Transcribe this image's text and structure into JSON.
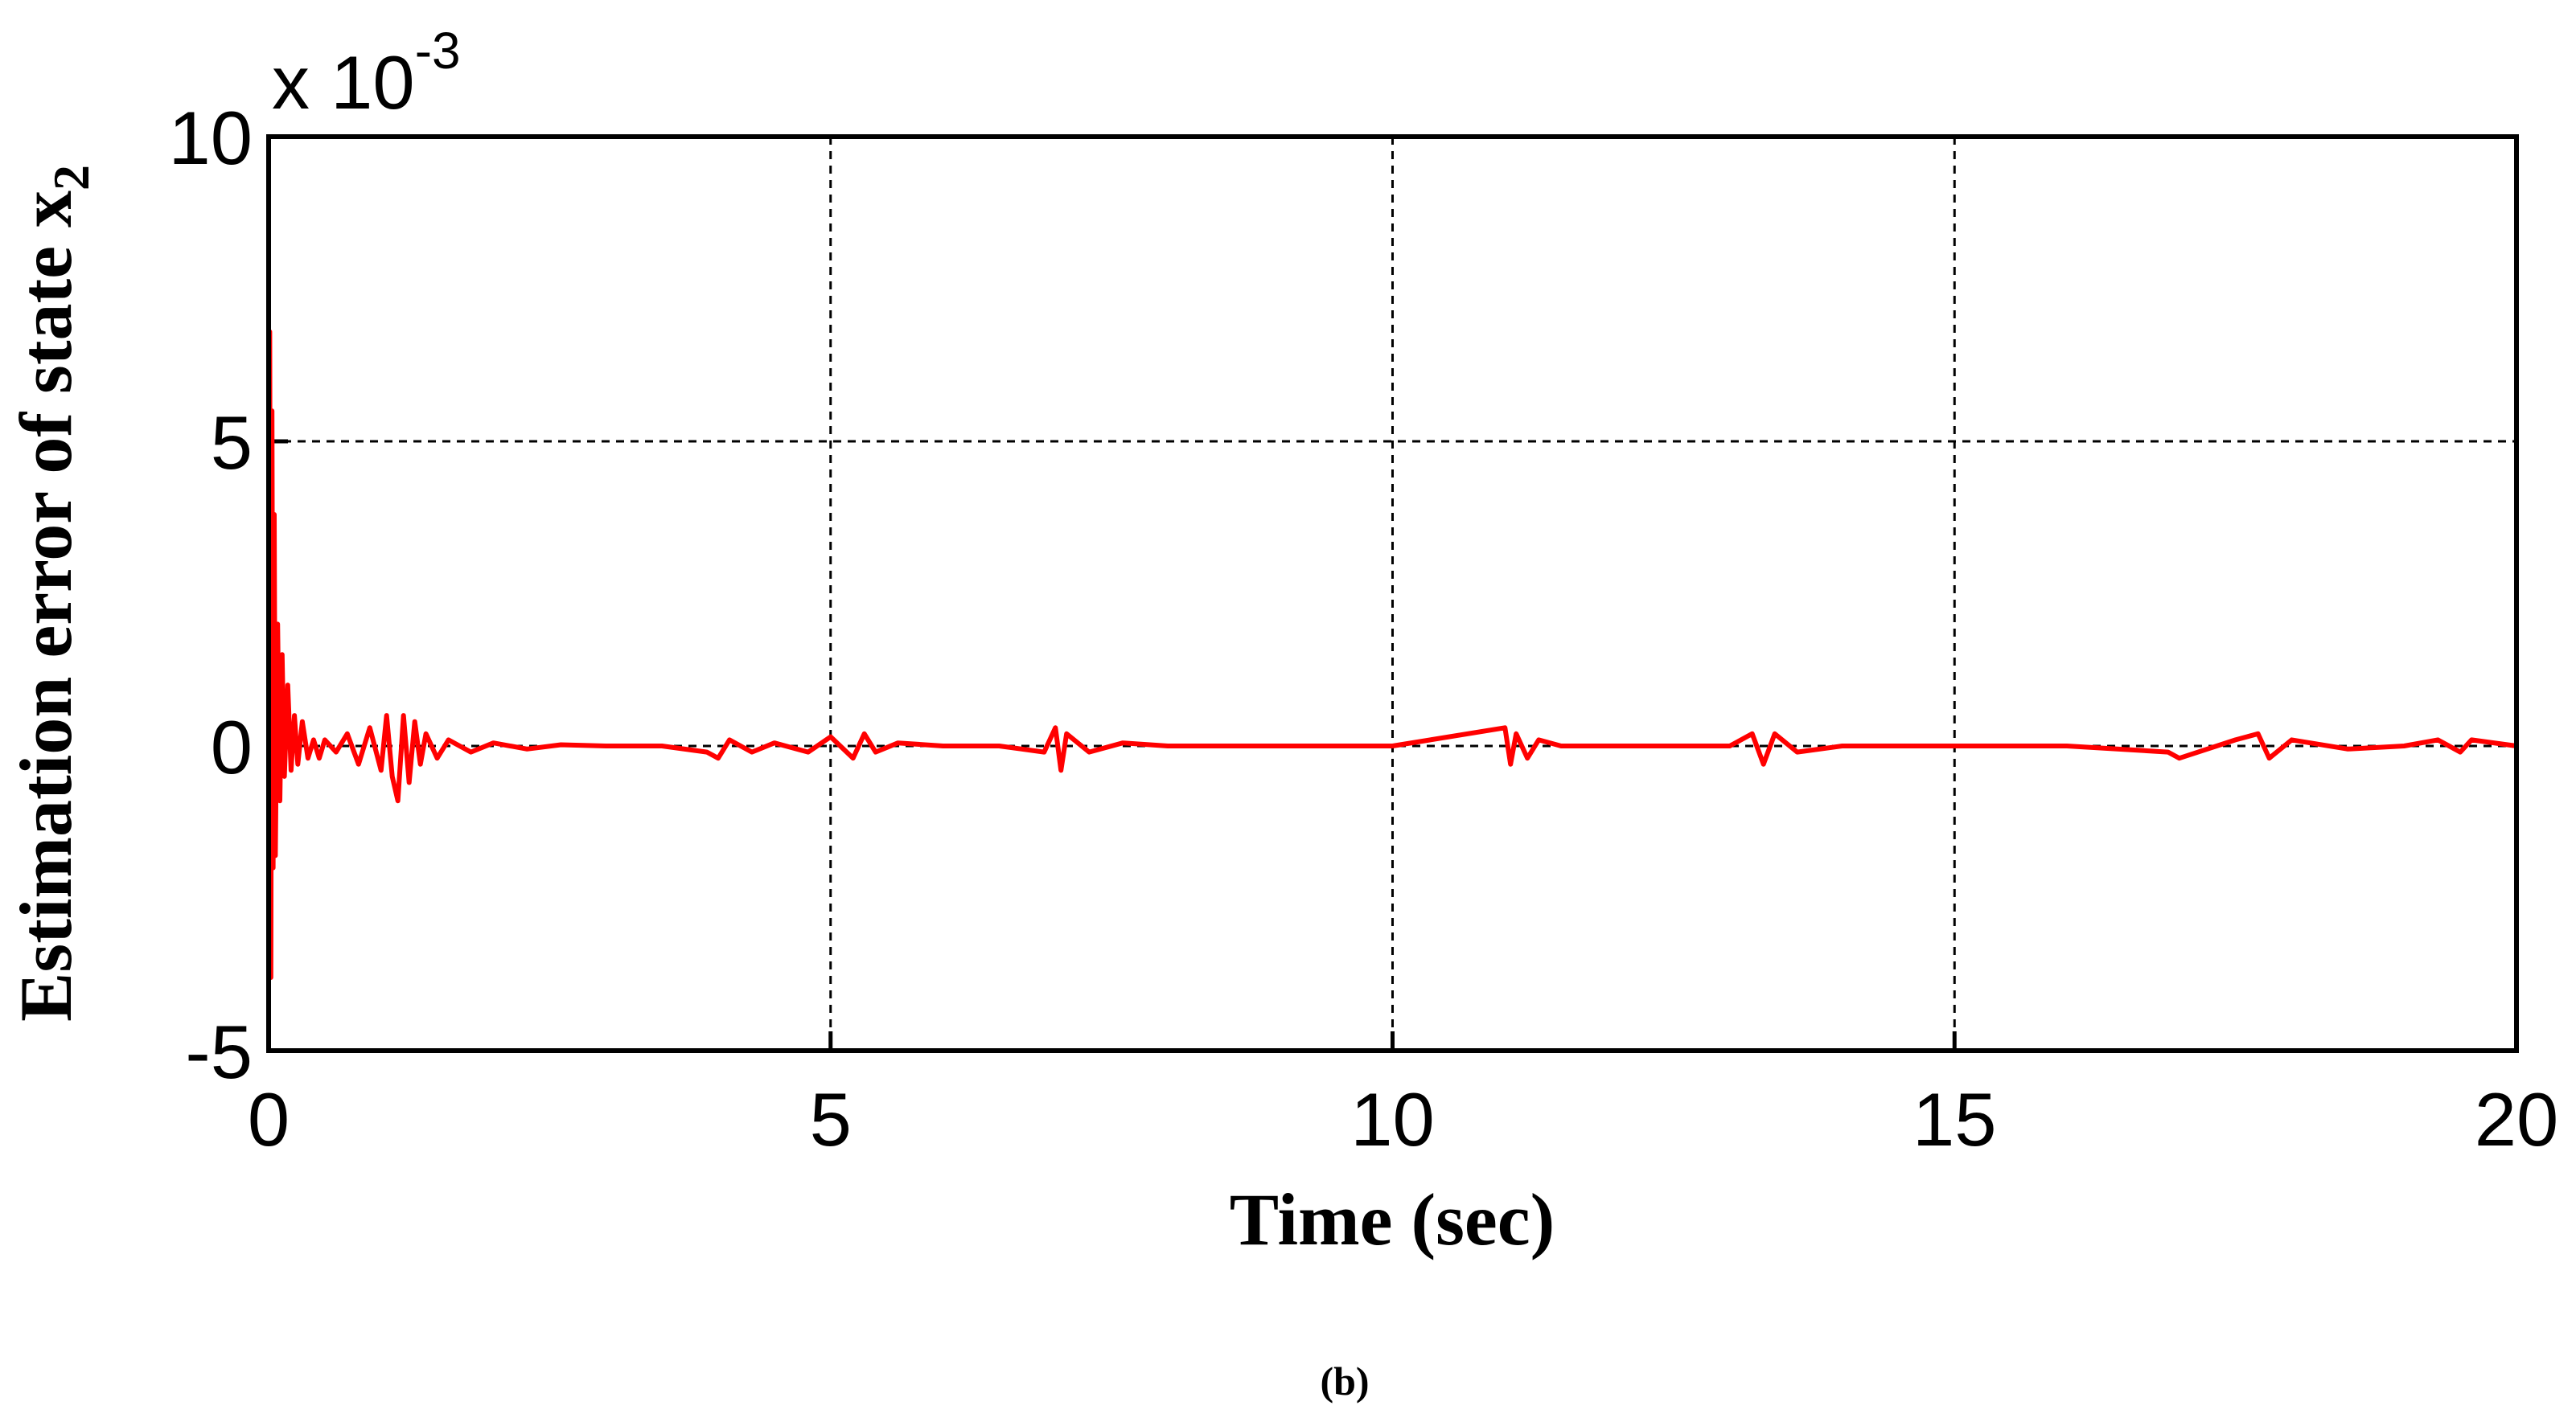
{
  "chart_data": {
    "type": "line",
    "xlabel": "Time (sec)",
    "ylabel": "Estimation error of state x",
    "ylabel_subscript": "2",
    "y_multiplier": "x 10",
    "y_multiplier_exponent": "-3",
    "caption": "(b)",
    "xlim": [
      0,
      20
    ],
    "xticks": [
      0,
      5,
      10,
      15,
      20
    ],
    "ylim": [
      -5,
      10
    ],
    "yticks": [
      -5,
      0,
      5,
      10
    ],
    "grid": true,
    "x": [
      0,
      0.01,
      0.02,
      0.03,
      0.04,
      0.05,
      0.06,
      0.08,
      0.1,
      0.12,
      0.14,
      0.17,
      0.2,
      0.23,
      0.26,
      0.3,
      0.35,
      0.4,
      0.45,
      0.5,
      0.6,
      0.7,
      0.8,
      0.9,
      1.0,
      1.05,
      1.1,
      1.15,
      1.2,
      1.25,
      1.3,
      1.35,
      1.4,
      1.5,
      1.6,
      1.8,
      2.0,
      2.3,
      2.6,
      3.0,
      3.5,
      3.9,
      4.0,
      4.1,
      4.3,
      4.5,
      4.8,
      5.0,
      5.2,
      5.3,
      5.4,
      5.6,
      6.0,
      6.5,
      6.9,
      7.0,
      7.05,
      7.1,
      7.3,
      7.6,
      8,
      9,
      10,
      11,
      11.05,
      11.1,
      11.2,
      11.3,
      11.5,
      12,
      13,
      13.2,
      13.3,
      13.4,
      13.6,
      14,
      15,
      16,
      16.9,
      17,
      17.5,
      17.7,
      17.8,
      18,
      18.5,
      19,
      19.3,
      19.5,
      19.6,
      20
    ],
    "series": [
      {
        "color": "#ff0000",
        "values": [
          0,
          6.8,
          -3.8,
          5.5,
          -2.0,
          3.8,
          -1.8,
          2.0,
          -0.9,
          1.5,
          -0.5,
          1.0,
          -0.4,
          0.5,
          -0.3,
          0.4,
          -0.2,
          0.1,
          -0.2,
          0.1,
          -0.1,
          0.2,
          -0.3,
          0.3,
          -0.4,
          0.5,
          -0.5,
          -0.9,
          0.5,
          -0.6,
          0.4,
          -0.3,
          0.2,
          -0.2,
          0.1,
          -0.1,
          0.05,
          -0.05,
          0.02,
          0,
          0,
          -0.1,
          -0.2,
          0.1,
          -0.1,
          0.05,
          -0.1,
          0.15,
          -0.2,
          0.2,
          -0.1,
          0.05,
          0,
          0,
          -0.1,
          0.3,
          -0.4,
          0.2,
          -0.1,
          0.05,
          0,
          0,
          0,
          0.3,
          -0.3,
          0.2,
          -0.2,
          0.1,
          0,
          0,
          0,
          0.2,
          -0.3,
          0.2,
          -0.1,
          0,
          0,
          0,
          -0.1,
          -0.2,
          0.1,
          0.2,
          -0.2,
          0.1,
          -0.05,
          0,
          0.1,
          -0.1,
          0.1,
          0
        ]
      }
    ]
  }
}
